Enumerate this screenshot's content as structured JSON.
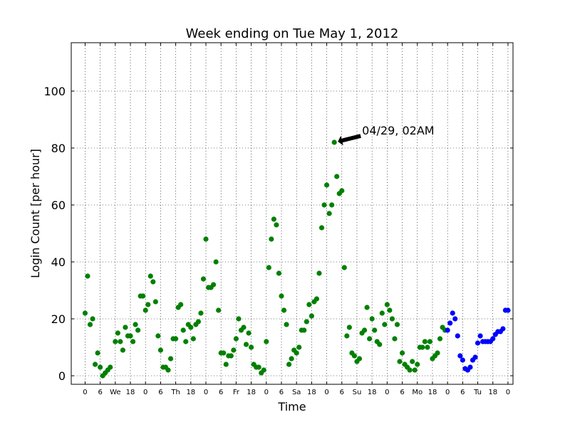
{
  "chart_data": {
    "type": "scatter",
    "title": "Week ending on Tue May  1, 2012",
    "xlabel": "Time",
    "ylabel": "Login Count [per hour]",
    "x_unit": "hours",
    "xlim": [
      -5.5,
      170
    ],
    "ylim": [
      -3,
      117
    ],
    "yticks": [
      0,
      20,
      40,
      60,
      80,
      100
    ],
    "xticks": [
      {
        "x": 0,
        "label": "0"
      },
      {
        "x": 6,
        "label": "6"
      },
      {
        "x": 12,
        "label": "We"
      },
      {
        "x": 18,
        "label": "18"
      },
      {
        "x": 24,
        "label": "0"
      },
      {
        "x": 30,
        "label": "6"
      },
      {
        "x": 36,
        "label": "Th"
      },
      {
        "x": 42,
        "label": "18"
      },
      {
        "x": 48,
        "label": "0"
      },
      {
        "x": 54,
        "label": "6"
      },
      {
        "x": 60,
        "label": "Fr"
      },
      {
        "x": 66,
        "label": "18"
      },
      {
        "x": 72,
        "label": "0"
      },
      {
        "x": 78,
        "label": "6"
      },
      {
        "x": 84,
        "label": "Sa"
      },
      {
        "x": 90,
        "label": "18"
      },
      {
        "x": 96,
        "label": "0"
      },
      {
        "x": 102,
        "label": "6"
      },
      {
        "x": 108,
        "label": "Su"
      },
      {
        "x": 114,
        "label": "18"
      },
      {
        "x": 120,
        "label": "0"
      },
      {
        "x": 126,
        "label": "6"
      },
      {
        "x": 132,
        "label": "Mo"
      },
      {
        "x": 138,
        "label": "18"
      },
      {
        "x": 144,
        "label": "0"
      },
      {
        "x": 150,
        "label": "6"
      },
      {
        "x": 156,
        "label": "Tu"
      },
      {
        "x": 162,
        "label": "18"
      },
      {
        "x": 168,
        "label": "0"
      }
    ],
    "grid": true,
    "series": [
      {
        "color": "#008000",
        "points": [
          [
            0,
            22
          ],
          [
            1,
            35
          ],
          [
            2,
            18
          ],
          [
            3,
            20
          ],
          [
            4,
            4
          ],
          [
            5,
            8
          ],
          [
            6,
            3
          ],
          [
            7,
            0
          ],
          [
            8,
            1
          ],
          [
            9,
            2
          ],
          [
            10,
            3
          ],
          [
            12,
            12
          ],
          [
            13,
            15
          ],
          [
            14,
            12
          ],
          [
            15,
            9
          ],
          [
            16,
            17
          ],
          [
            17,
            14
          ],
          [
            18,
            14
          ],
          [
            19,
            12
          ],
          [
            20,
            18
          ],
          [
            21,
            16
          ],
          [
            22,
            28
          ],
          [
            23,
            28
          ],
          [
            24,
            23
          ],
          [
            25,
            25
          ],
          [
            26,
            35
          ],
          [
            27,
            33
          ],
          [
            28,
            26
          ],
          [
            29,
            14
          ],
          [
            30,
            9
          ],
          [
            31,
            3
          ],
          [
            32,
            3
          ],
          [
            33,
            2
          ],
          [
            34,
            6
          ],
          [
            35,
            13
          ],
          [
            36,
            13
          ],
          [
            37,
            24
          ],
          [
            38,
            25
          ],
          [
            39,
            16
          ],
          [
            40,
            12
          ],
          [
            41,
            18
          ],
          [
            42,
            17
          ],
          [
            43,
            13
          ],
          [
            44,
            18
          ],
          [
            45,
            19
          ],
          [
            46,
            22
          ],
          [
            47,
            34
          ],
          [
            48,
            48
          ],
          [
            49,
            31
          ],
          [
            50,
            31
          ],
          [
            51,
            32
          ],
          [
            52,
            40
          ],
          [
            53,
            23
          ],
          [
            54,
            8
          ],
          [
            55,
            8
          ],
          [
            56,
            4
          ],
          [
            57,
            7
          ],
          [
            58,
            7
          ],
          [
            59,
            9
          ],
          [
            60,
            13
          ],
          [
            61,
            20
          ],
          [
            62,
            16
          ],
          [
            63,
            17
          ],
          [
            64,
            11
          ],
          [
            65,
            15
          ],
          [
            66,
            10
          ],
          [
            67,
            4
          ],
          [
            68,
            3
          ],
          [
            69,
            3
          ],
          [
            70,
            1
          ],
          [
            71,
            2
          ],
          [
            72,
            12
          ],
          [
            73,
            38
          ],
          [
            74,
            48
          ],
          [
            75,
            55
          ],
          [
            76,
            53
          ],
          [
            77,
            36
          ],
          [
            78,
            28
          ],
          [
            79,
            23
          ],
          [
            80,
            18
          ],
          [
            81,
            4
          ],
          [
            82,
            6
          ],
          [
            83,
            9
          ],
          [
            84,
            8
          ],
          [
            85,
            10
          ],
          [
            86,
            16
          ],
          [
            87,
            16
          ],
          [
            88,
            19
          ],
          [
            89,
            25
          ],
          [
            90,
            21
          ],
          [
            91,
            26
          ],
          [
            92,
            27
          ],
          [
            93,
            36
          ],
          [
            94,
            52
          ],
          [
            95,
            60
          ],
          [
            96,
            67
          ],
          [
            97,
            57
          ],
          [
            98,
            60
          ],
          [
            99,
            82
          ],
          [
            100,
            70
          ],
          [
            101,
            64
          ],
          [
            102,
            65
          ],
          [
            103,
            38
          ],
          [
            104,
            14
          ],
          [
            105,
            17
          ],
          [
            106,
            8
          ],
          [
            107,
            7
          ],
          [
            108,
            5
          ],
          [
            109,
            6
          ],
          [
            110,
            15
          ],
          [
            111,
            16
          ],
          [
            112,
            24
          ],
          [
            113,
            13
          ],
          [
            114,
            20
          ],
          [
            115,
            16
          ],
          [
            116,
            12
          ],
          [
            117,
            11
          ],
          [
            118,
            22
          ],
          [
            119,
            18
          ],
          [
            120,
            25
          ],
          [
            121,
            23
          ],
          [
            122,
            20
          ],
          [
            123,
            13
          ],
          [
            124,
            18
          ],
          [
            125,
            5
          ],
          [
            126,
            8
          ],
          [
            127,
            4
          ],
          [
            128,
            3
          ],
          [
            129,
            2
          ],
          [
            130,
            5
          ],
          [
            131,
            2
          ],
          [
            132,
            4
          ],
          [
            133,
            10
          ],
          [
            134,
            10
          ],
          [
            135,
            12
          ],
          [
            136,
            10
          ],
          [
            137,
            12
          ],
          [
            138,
            6
          ],
          [
            139,
            7
          ],
          [
            140,
            8
          ],
          [
            141,
            13
          ],
          [
            142,
            17
          ],
          [
            143,
            16
          ]
        ]
      },
      {
        "color": "#0000ff",
        "points": [
          [
            144,
            16
          ],
          [
            145,
            18.5
          ],
          [
            146,
            22
          ],
          [
            147,
            20
          ],
          [
            148,
            14
          ],
          [
            149,
            7
          ],
          [
            150,
            5.5
          ],
          [
            151,
            2.5
          ],
          [
            152,
            2
          ],
          [
            153,
            3
          ],
          [
            154,
            5.5
          ],
          [
            155,
            6.5
          ],
          [
            156,
            11.5
          ],
          [
            157,
            14
          ],
          [
            158,
            12
          ],
          [
            159,
            12
          ],
          [
            160,
            12
          ],
          [
            161,
            12
          ],
          [
            162,
            13
          ],
          [
            163,
            14.5
          ],
          [
            164,
            15.5
          ],
          [
            165,
            15.5
          ],
          [
            166,
            16.5
          ],
          [
            167,
            23
          ],
          [
            168,
            23
          ]
        ]
      }
    ],
    "annotation": {
      "text": "04/29, 02AM",
      "x": 99,
      "y": 82
    }
  }
}
